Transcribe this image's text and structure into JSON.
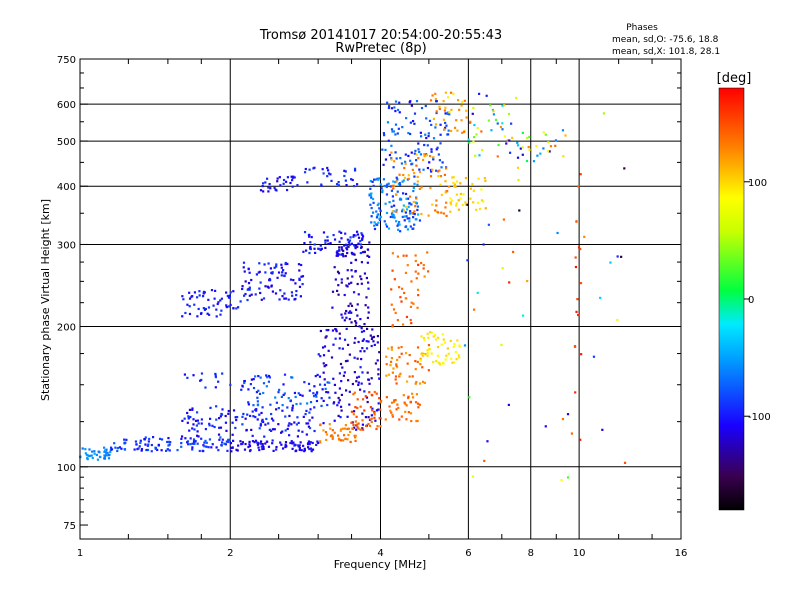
{
  "chart_data": {
    "type": "scatter",
    "title": "Tromsø 20141017 20:54:00-20:55:43",
    "subtitle": "RwPretec (8p)",
    "xlabel": "Frequency [MHz]",
    "ylabel": "Stationary phase Virtual Height [km]",
    "x_scale": "log",
    "y_scale": "log",
    "xlim": [
      1,
      16
    ],
    "ylim": [
      70,
      750
    ],
    "x_ticks": [
      1,
      2,
      4,
      6,
      8,
      10,
      16
    ],
    "y_ticks": [
      75,
      100,
      200,
      300,
      400,
      500,
      600,
      750
    ],
    "grid": true,
    "phase_stats": {
      "heading": "Phases",
      "line_o": "mean, sd,O: -75.6, 18.8",
      "line_x": "mean, sd,X: 101.8, 28.1"
    },
    "colorbar": {
      "label": "[deg]",
      "range": [
        -180,
        180
      ],
      "ticks": [
        100,
        0,
        -100
      ],
      "colormap": "rainbow"
    },
    "point_groups": [
      {
        "xr": [
          1.0,
          1.15
        ],
        "yr": [
          103,
          110
        ],
        "pr": [
          -70,
          -45
        ],
        "n": 40
      },
      {
        "xr": [
          1.15,
          2.0
        ],
        "yr": [
          108,
          116
        ],
        "pr": [
          -110,
          -70
        ],
        "n": 110
      },
      {
        "xr": [
          2.0,
          3.0
        ],
        "yr": [
          108,
          114
        ],
        "pr": [
          -125,
          -95
        ],
        "n": 90
      },
      {
        "xr": [
          1.6,
          3.0
        ],
        "yr": [
          116,
          135
        ],
        "pr": [
          -120,
          -80
        ],
        "n": 130
      },
      {
        "xr": [
          2.1,
          3.2
        ],
        "yr": [
          135,
          158
        ],
        "pr": [
          -110,
          -60
        ],
        "n": 80
      },
      {
        "xr": [
          1.6,
          2.0
        ],
        "yr": [
          148,
          160
        ],
        "pr": [
          -110,
          -80
        ],
        "n": 14
      },
      {
        "xr": [
          1.6,
          2.1
        ],
        "yr": [
          210,
          240
        ],
        "pr": [
          -110,
          -85
        ],
        "n": 60
      },
      {
        "xr": [
          2.1,
          2.8
        ],
        "yr": [
          228,
          275
        ],
        "pr": [
          -120,
          -85
        ],
        "n": 90
      },
      {
        "xr": [
          2.8,
          3.8
        ],
        "yr": [
          285,
          320
        ],
        "pr": [
          -120,
          -80
        ],
        "n": 80
      },
      {
        "xr": [
          2.3,
          2.8
        ],
        "yr": [
          390,
          420
        ],
        "pr": [
          -120,
          -90
        ],
        "n": 30
      },
      {
        "xr": [
          2.8,
          3.6
        ],
        "yr": [
          400,
          440
        ],
        "pr": [
          -110,
          -80
        ],
        "n": 30
      },
      {
        "xr": [
          3.0,
          4.0
        ],
        "yr": [
          120,
          200
        ],
        "pr": [
          -135,
          -95
        ],
        "n": 140
      },
      {
        "xr": [
          3.2,
          3.8
        ],
        "yr": [
          200,
          300
        ],
        "pr": [
          -140,
          -100
        ],
        "n": 90
      },
      {
        "xr": [
          3.8,
          4.8
        ],
        "yr": [
          320,
          420
        ],
        "pr": [
          -100,
          -40
        ],
        "n": 140
      },
      {
        "xr": [
          4.0,
          5.5
        ],
        "yr": [
          430,
          610
        ],
        "pr": [
          -110,
          -60
        ],
        "n": 110
      },
      {
        "xr": [
          3.0,
          3.6
        ],
        "yr": [
          112,
          125
        ],
        "pr": [
          120,
          145
        ],
        "n": 40
      },
      {
        "xr": [
          3.5,
          4.0
        ],
        "yr": [
          120,
          145
        ],
        "pr": [
          130,
          160
        ],
        "n": 45
      },
      {
        "xr": [
          4.0,
          4.8
        ],
        "yr": [
          125,
          145
        ],
        "pr": [
          125,
          150
        ],
        "n": 40
      },
      {
        "xr": [
          4.1,
          5.0
        ],
        "yr": [
          150,
          185
        ],
        "pr": [
          110,
          150
        ],
        "n": 50
      },
      {
        "xr": [
          4.2,
          5.0
        ],
        "yr": [
          200,
          290
        ],
        "pr": [
          125,
          160
        ],
        "n": 45
      },
      {
        "xr": [
          4.8,
          5.8
        ],
        "yr": [
          165,
          195
        ],
        "pr": [
          80,
          105
        ],
        "n": 50
      },
      {
        "xr": [
          4.2,
          5.5
        ],
        "yr": [
          345,
          480
        ],
        "pr": [
          100,
          145
        ],
        "n": 70
      },
      {
        "xr": [
          5.5,
          6.5
        ],
        "yr": [
          350,
          420
        ],
        "pr": [
          85,
          115
        ],
        "n": 40
      },
      {
        "xr": [
          5.0,
          6.0
        ],
        "yr": [
          520,
          640
        ],
        "pr": [
          90,
          140
        ],
        "n": 35
      },
      {
        "xr": [
          6.0,
          7.5
        ],
        "yr": [
          460,
          640
        ],
        "pr": [
          -130,
          140
        ],
        "n": 40
      },
      {
        "xr": [
          7.5,
          9.0
        ],
        "yr": [
          450,
          530
        ],
        "pr": [
          -130,
          150
        ],
        "n": 25
      },
      {
        "xr": [
          9.8,
          10.1
        ],
        "yr": [
          110,
          470
        ],
        "pr": [
          145,
          175
        ],
        "n": 16
      },
      {
        "xr": [
          5.8,
          12.5
        ],
        "yr": [
          80,
          650
        ],
        "pr": [
          -170,
          170
        ],
        "n": 45
      }
    ]
  }
}
